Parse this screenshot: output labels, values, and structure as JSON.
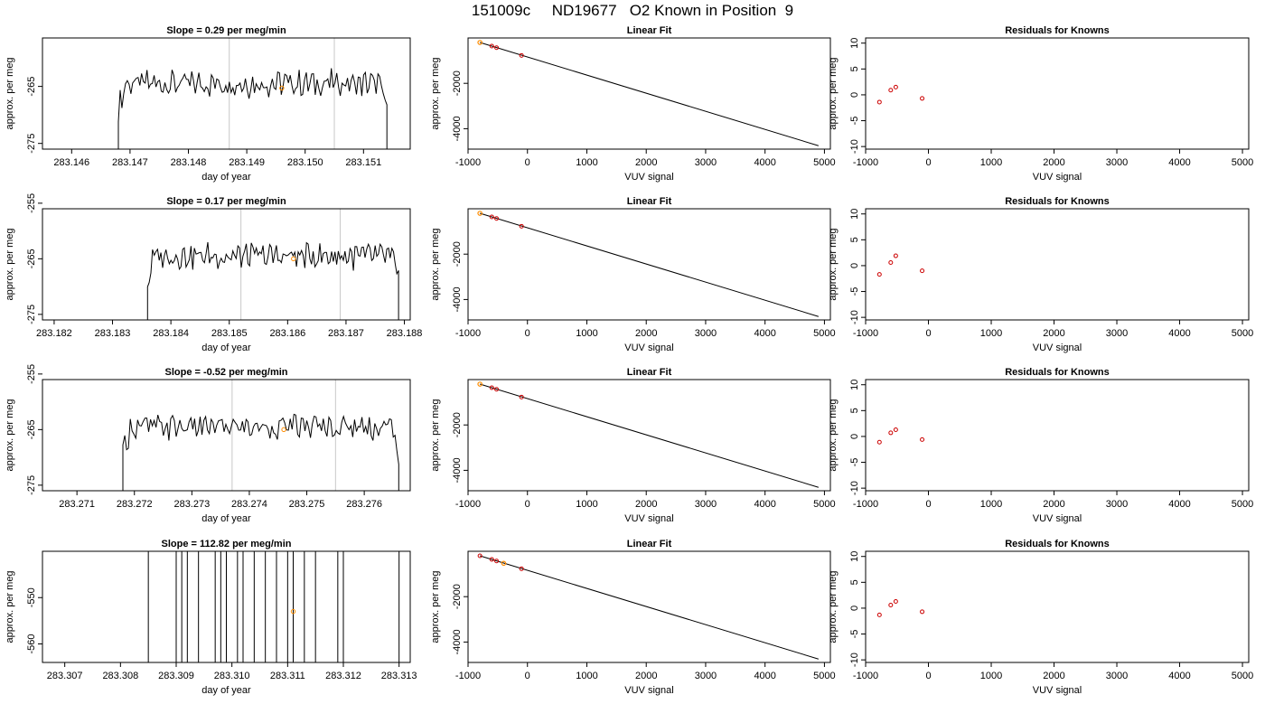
{
  "title": "151009c     ND19677   O2 Known in Position  9",
  "colors": {
    "trace": "#000000",
    "vline": "#c8c8c8",
    "known": "#ff8c00",
    "point": "#cc0000"
  },
  "chart_data": [
    {
      "title": "Slope =  0.29  per meg/min",
      "type": "line",
      "xlabel": "day of year",
      "ylabel": "approx. per meg",
      "xlim": [
        283.1455,
        283.1518
      ],
      "ylim": [
        -276,
        -256.5
      ],
      "xticks": [
        "283.146",
        "283.147",
        "283.148",
        "283.149",
        "283.150",
        "283.151"
      ],
      "yticks": [
        "-265",
        "-275"
      ],
      "trace": {
        "start": 283.1468,
        "end": 283.1514,
        "center": -264.5,
        "amp": 2.5,
        "bottom": -276
      },
      "vlines": [
        283.1487,
        283.1505
      ],
      "marker": {
        "x": 283.1496,
        "y": -265.3
      }
    },
    {
      "title": "Linear Fit",
      "type": "scatter",
      "xlabel": "VUV signal",
      "ylabel": "approx. per meg",
      "xlim": [
        -1000,
        5100
      ],
      "ylim": [
        -4900,
        0
      ],
      "xticks": [
        "-1000",
        "0",
        "1000",
        "2000",
        "3000",
        "4000",
        "5000"
      ],
      "yticks": [
        "-2000",
        "-4000"
      ],
      "line": [
        [
          -800,
          -200
        ],
        [
          4900,
          -4750
        ]
      ],
      "points": [
        [
          -600,
          -360
        ],
        [
          -520,
          -430
        ],
        [
          -100,
          -770
        ]
      ],
      "known": [
        [
          -800,
          -200
        ]
      ]
    },
    {
      "title": "Residuals for Knowns",
      "type": "scatter",
      "xlabel": "VUV signal",
      "ylabel": "approx. per meg",
      "xlim": [
        -1000,
        5100
      ],
      "ylim": [
        -10.5,
        11
      ],
      "xticks": [
        "-1000",
        "0",
        "1000",
        "2000",
        "3000",
        "4000",
        "5000"
      ],
      "yticks": [
        "10",
        "5",
        "0",
        "-5",
        "-10"
      ],
      "points": [
        [
          -780,
          -1.4
        ],
        [
          -600,
          0.9
        ],
        [
          -520,
          1.5
        ],
        [
          -100,
          -0.7
        ]
      ]
    },
    {
      "title": "Slope =  0.17  per meg/min",
      "type": "line",
      "xlabel": "day of year",
      "ylabel": "approx. per meg",
      "xlim": [
        283.1818,
        283.1881
      ],
      "ylim": [
        -276,
        -256
      ],
      "xticks": [
        "283.182",
        "283.183",
        "283.184",
        "283.185",
        "283.186",
        "283.187",
        "283.188"
      ],
      "yticks": [
        "-255",
        "-265",
        "-275"
      ],
      "trace": {
        "start": 283.1836,
        "end": 283.1879,
        "center": -264.5,
        "amp": 2.5,
        "bottom": -276
      },
      "vlines": [
        283.1852,
        283.1869
      ],
      "marker": {
        "x": 283.1861,
        "y": -265.0
      }
    },
    {
      "title": "Linear Fit",
      "type": "scatter",
      "xlabel": "VUV signal",
      "ylabel": "approx. per meg",
      "xlim": [
        -1000,
        5100
      ],
      "ylim": [
        -4900,
        0
      ],
      "xticks": [
        "-1000",
        "0",
        "1000",
        "2000",
        "3000",
        "4000",
        "5000"
      ],
      "yticks": [
        "-2000",
        "-4000"
      ],
      "line": [
        [
          -800,
          -200
        ],
        [
          4900,
          -4750
        ]
      ],
      "points": [
        [
          -600,
          -360
        ],
        [
          -520,
          -430
        ],
        [
          -100,
          -770
        ]
      ],
      "known": [
        [
          -800,
          -200
        ]
      ]
    },
    {
      "title": "Residuals for Knowns",
      "type": "scatter",
      "xlabel": "VUV signal",
      "ylabel": "approx. per meg",
      "xlim": [
        -1000,
        5100
      ],
      "ylim": [
        -10.5,
        11
      ],
      "xticks": [
        "-1000",
        "0",
        "1000",
        "2000",
        "3000",
        "4000",
        "5000"
      ],
      "yticks": [
        "10",
        "5",
        "0",
        "-5",
        "-10"
      ],
      "points": [
        [
          -780,
          -1.7
        ],
        [
          -600,
          0.6
        ],
        [
          -520,
          1.9
        ],
        [
          -100,
          -1.0
        ]
      ]
    },
    {
      "title": "Slope =  -0.52  per meg/min",
      "type": "line",
      "xlabel": "day of year",
      "ylabel": "approx. per meg",
      "xlim": [
        283.2704,
        283.2768
      ],
      "ylim": [
        -276,
        -256
      ],
      "xticks": [
        "283.271",
        "283.272",
        "283.273",
        "283.274",
        "283.275",
        "283.276"
      ],
      "yticks": [
        "-255",
        "-265",
        "-275"
      ],
      "trace": {
        "start": 283.2718,
        "end": 283.2766,
        "center": -264.5,
        "amp": 2.5,
        "bottom": -276
      },
      "vlines": [
        283.2737,
        283.2755
      ],
      "marker": {
        "x": 283.2746,
        "y": -265.0
      }
    },
    {
      "title": "Linear Fit",
      "type": "scatter",
      "xlabel": "VUV signal",
      "ylabel": "approx. per meg",
      "xlim": [
        -1000,
        5100
      ],
      "ylim": [
        -4900,
        0
      ],
      "xticks": [
        "-1000",
        "0",
        "1000",
        "2000",
        "3000",
        "4000",
        "5000"
      ],
      "yticks": [
        "-2000",
        "-4000"
      ],
      "line": [
        [
          -800,
          -200
        ],
        [
          4900,
          -4750
        ]
      ],
      "points": [
        [
          -600,
          -360
        ],
        [
          -520,
          -430
        ],
        [
          -100,
          -770
        ]
      ],
      "known": [
        [
          -800,
          -200
        ]
      ]
    },
    {
      "title": "Residuals for Knowns",
      "type": "scatter",
      "xlabel": "VUV signal",
      "ylabel": "approx. per meg",
      "xlim": [
        -1000,
        5100
      ],
      "ylim": [
        -10.5,
        11
      ],
      "xticks": [
        "-1000",
        "0",
        "1000",
        "2000",
        "3000",
        "4000",
        "5000"
      ],
      "yticks": [
        "10",
        "5",
        "0",
        "-5",
        "-10"
      ],
      "points": [
        [
          -780,
          -1.1
        ],
        [
          -600,
          0.7
        ],
        [
          -520,
          1.3
        ],
        [
          -100,
          -0.6
        ]
      ]
    },
    {
      "title": "Slope =  112.82  per meg/min",
      "type": "line",
      "xlabel": "day of year",
      "ylabel": "approx. per meg",
      "xlim": [
        283.3066,
        283.3132
      ],
      "ylim": [
        -564,
        -540
      ],
      "xticks": [
        "283.307",
        "283.308",
        "283.309",
        "283.310",
        "283.311",
        "283.312",
        "283.313"
      ],
      "yticks": [
        "-550",
        "-560"
      ],
      "spikes": [
        283.3085,
        283.309,
        283.3091,
        283.3092,
        283.3094,
        283.3097,
        283.3098,
        283.3099,
        283.3101,
        283.3102,
        283.3104,
        283.3106,
        283.3108,
        283.311,
        283.3111,
        283.3113,
        283.3115,
        283.3119,
        283.312,
        283.313
      ],
      "marker": {
        "x": 283.3111,
        "y": -553.0
      }
    },
    {
      "title": "Linear Fit",
      "type": "scatter",
      "xlabel": "VUV signal",
      "ylabel": "approx. per meg",
      "xlim": [
        -1000,
        5100
      ],
      "ylim": [
        -4900,
        0
      ],
      "xticks": [
        "-1000",
        "0",
        "1000",
        "2000",
        "3000",
        "4000",
        "5000"
      ],
      "yticks": [
        "-2000",
        "-4000"
      ],
      "line": [
        [
          -800,
          -200
        ],
        [
          4900,
          -4750
        ]
      ],
      "points": [
        [
          -800,
          -200
        ],
        [
          -600,
          -360
        ],
        [
          -520,
          -430
        ],
        [
          -100,
          -770
        ]
      ],
      "known": [
        [
          -400,
          -530
        ]
      ]
    },
    {
      "title": "Residuals for Knowns",
      "type": "scatter",
      "xlabel": "VUV signal",
      "ylabel": "approx. per meg",
      "xlim": [
        -1000,
        5100
      ],
      "ylim": [
        -10.5,
        11
      ],
      "xticks": [
        "-1000",
        "0",
        "1000",
        "2000",
        "3000",
        "4000",
        "5000"
      ],
      "yticks": [
        "10",
        "5",
        "0",
        "-5",
        "-10"
      ],
      "points": [
        [
          -780,
          -1.3
        ],
        [
          -600,
          0.6
        ],
        [
          -520,
          1.3
        ],
        [
          -100,
          -0.7
        ]
      ]
    }
  ]
}
